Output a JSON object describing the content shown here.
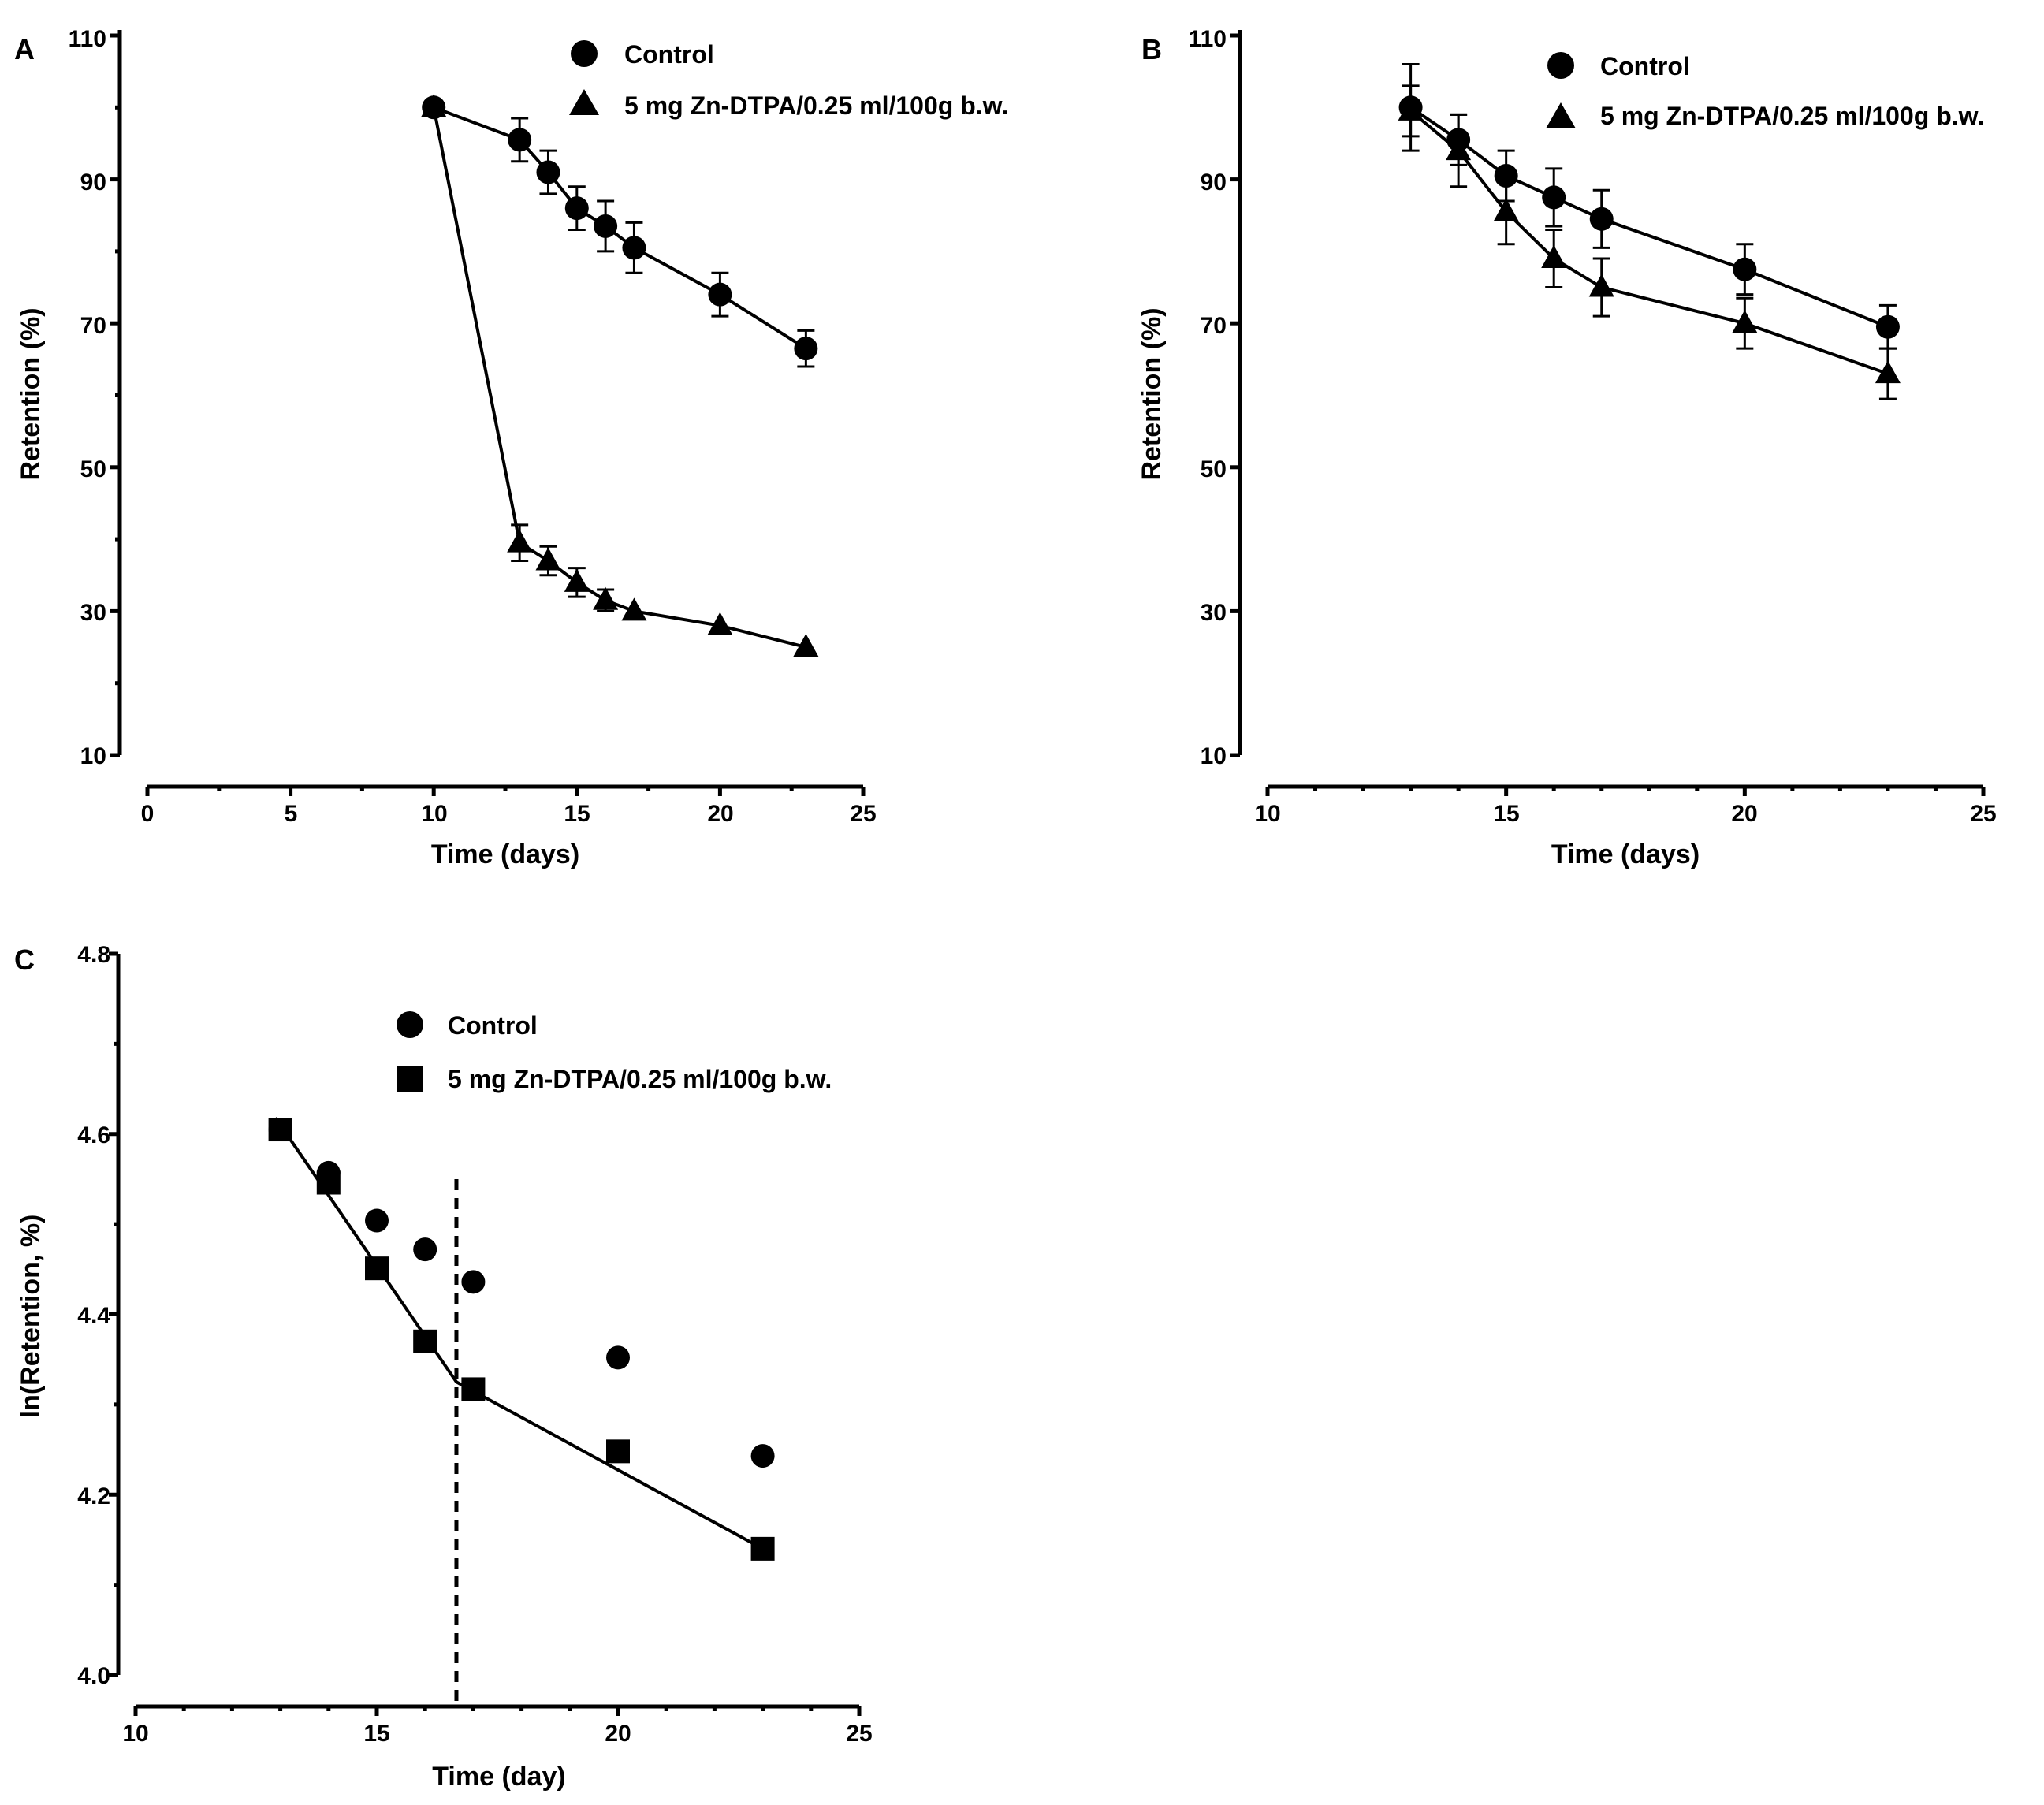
{
  "chart_data": [
    {
      "panel": "A",
      "type": "line",
      "xlabel": "Time (days)",
      "ylabel": "Retention (%)",
      "xlim": [
        0,
        25
      ],
      "ylim": [
        10,
        110
      ],
      "xticks": [
        0,
        5,
        10,
        15,
        20,
        25
      ],
      "yticks": [
        10,
        30,
        50,
        70,
        90,
        110
      ],
      "legend_position": "top-center",
      "series": [
        {
          "name": "Control",
          "marker": "circle",
          "x": [
            10,
            13,
            14,
            15,
            16,
            17,
            20,
            23
          ],
          "y": [
            100,
            95.5,
            91,
            86,
            83.5,
            80.5,
            74,
            66.5
          ],
          "err": [
            0,
            3,
            3,
            3,
            3.5,
            3.5,
            3,
            2.5
          ]
        },
        {
          "name": "5 mg Zn-DTPA/0.25 ml/100g b.w.",
          "marker": "triangle",
          "x": [
            10,
            13,
            14,
            15,
            16,
            17,
            20,
            23
          ],
          "y": [
            100,
            39.5,
            37,
            34,
            31.5,
            30,
            28,
            25
          ],
          "err": [
            0,
            2.5,
            2,
            2,
            1.5,
            0,
            0,
            0
          ]
        }
      ]
    },
    {
      "panel": "B",
      "type": "line",
      "xlabel": "Time (days)",
      "ylabel": "Retention (%)",
      "xlim": [
        10,
        25
      ],
      "ylim": [
        10,
        110
      ],
      "xticks": [
        10,
        15,
        20,
        25
      ],
      "yticks": [
        10,
        30,
        50,
        70,
        90,
        110
      ],
      "legend_position": "top-right",
      "series": [
        {
          "name": "Control",
          "marker": "circle",
          "x": [
            13,
            14,
            15,
            16,
            17,
            20,
            23
          ],
          "y": [
            100,
            95.5,
            90.5,
            87.5,
            84.5,
            77.5,
            69.5
          ],
          "err": [
            6,
            3.5,
            3.5,
            4,
            4,
            3.5,
            3
          ]
        },
        {
          "name": "5 mg Zn-DTPA/0.25 ml/100g b.w.",
          "marker": "triangle",
          "x": [
            13,
            14,
            15,
            16,
            17,
            20,
            23
          ],
          "y": [
            99.5,
            94,
            85.5,
            79,
            75,
            70,
            63
          ],
          "err": [
            3.5,
            5,
            4.5,
            4,
            4,
            3.5,
            3.5
          ]
        }
      ]
    },
    {
      "panel": "C",
      "type": "scatter",
      "xlabel": "Time (day)",
      "ylabel": "ln(Retention, %)",
      "xlim": [
        10,
        25
      ],
      "ylim": [
        4.0,
        4.8
      ],
      "xticks": [
        10,
        15,
        20,
        25
      ],
      "yticks": [
        4.0,
        4.2,
        4.4,
        4.6,
        4.8
      ],
      "legend_position": "top-center",
      "series": [
        {
          "name": "Control",
          "marker": "circle",
          "x": [
            13,
            14,
            15,
            16,
            17,
            20,
            23
          ],
          "y": [
            4.605,
            4.557,
            4.504,
            4.472,
            4.436,
            4.352,
            4.243
          ]
        },
        {
          "name": "5 mg Zn-DTPA/0.25 ml/100g b.w.",
          "marker": "square",
          "x": [
            13,
            14,
            15,
            16,
            17,
            20,
            23
          ],
          "y": [
            4.605,
            4.546,
            4.451,
            4.37,
            4.317,
            4.248,
            4.14
          ]
        }
      ],
      "fit_lines": [
        {
          "x": [
            12.9,
            16.65
          ],
          "y": [
            4.618,
            4.325
          ]
        },
        {
          "x": [
            16.65,
            23
          ],
          "y": [
            4.325,
            4.14
          ]
        }
      ],
      "breakpoint_x": 16.65
    }
  ],
  "panel_letters": {
    "a": "A",
    "b": "B",
    "c": "C"
  },
  "ticks": {
    "a_x": [
      "0",
      "5",
      "10",
      "15",
      "20",
      "25"
    ],
    "a_y": [
      "10",
      "30",
      "50",
      "70",
      "90",
      "110"
    ],
    "b_x": [
      "10",
      "15",
      "20",
      "25"
    ],
    "b_y": [
      "10",
      "30",
      "50",
      "70",
      "90",
      "110"
    ],
    "c_x": [
      "10",
      "15",
      "20",
      "25"
    ],
    "c_y": [
      "4.0",
      "4.2",
      "4.4",
      "4.6",
      "4.8"
    ]
  },
  "axis_titles": {
    "a_x": "Time (days)",
    "a_y": "Retention (%)",
    "b_x": "Time (days)",
    "b_y": "Retention (%)",
    "c_x": "Time (day)",
    "c_y": "ln(Retention, %)"
  },
  "legends": {
    "a_control": "Control",
    "a_treat": "5 mg Zn-DTPA/0.25 ml/100g b.w.",
    "b_control": "Control",
    "b_treat": "5 mg Zn-DTPA/0.25 ml/100g b.w.",
    "c_control": "Control",
    "c_treat": "5 mg Zn-DTPA/0.25 ml/100g b.w."
  }
}
